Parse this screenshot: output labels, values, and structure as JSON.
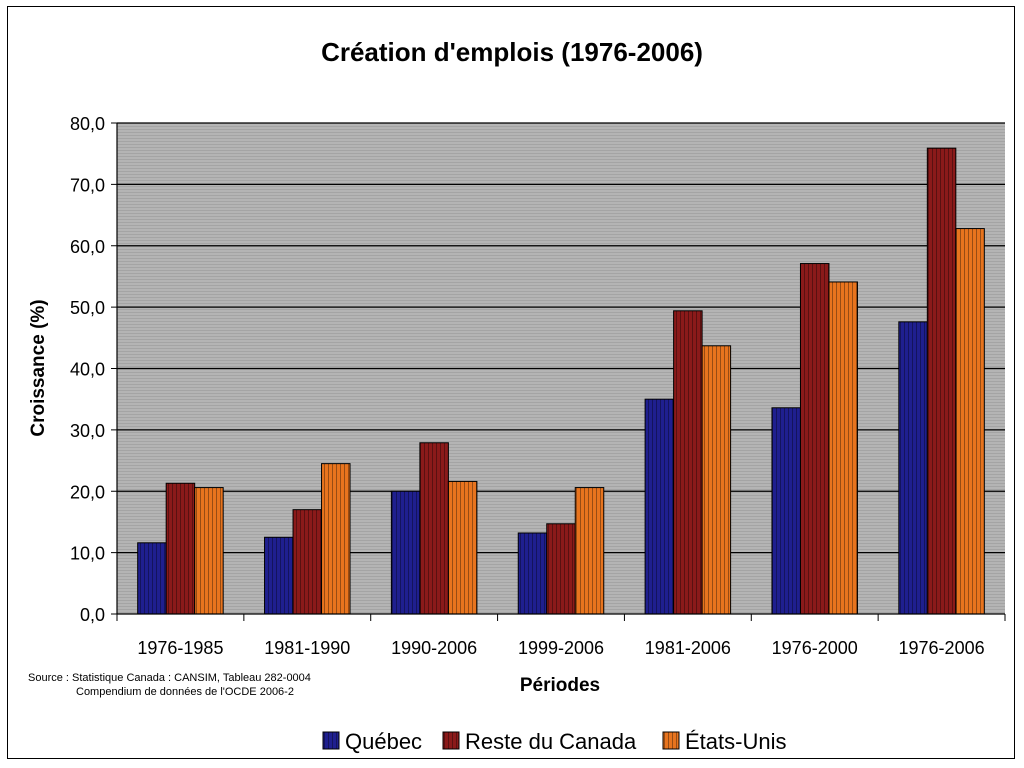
{
  "colors": {
    "plot_bg": "#b2b2b2",
    "gridline": "#000000",
    "series": [
      "#1f1f8f",
      "#8b1a1a",
      "#e8741e"
    ]
  },
  "source": {
    "line1": "Source : Statistique Canada : CANSIM, Tableau 282-0004",
    "line2": "Compendium de données de l'OCDE 2006-2"
  },
  "chart_data": {
    "type": "bar",
    "title": "Création d'emplois (1976-2006)",
    "xlabel": "Périodes",
    "ylabel": "Croissance (%)",
    "ylim": [
      0,
      80
    ],
    "yticks": [
      "0,0",
      "10,0",
      "20,0",
      "30,0",
      "40,0",
      "50,0",
      "60,0",
      "70,0",
      "80,0"
    ],
    "grid": true,
    "legend_position": "bottom",
    "categories": [
      "1976-1985",
      "1981-1990",
      "1990-2006",
      "1999-2006",
      "1981-2006",
      "1976-2000",
      "1976-2006"
    ],
    "series": [
      {
        "name": "Québec",
        "values": [
          11.6,
          12.5,
          20.0,
          13.2,
          35.0,
          33.6,
          47.6
        ]
      },
      {
        "name": "Reste du Canada",
        "values": [
          21.3,
          17.0,
          27.9,
          14.7,
          49.4,
          57.1,
          75.9
        ]
      },
      {
        "name": "États-Unis",
        "values": [
          20.6,
          24.5,
          21.6,
          20.6,
          43.7,
          54.1,
          62.8
        ]
      }
    ]
  }
}
